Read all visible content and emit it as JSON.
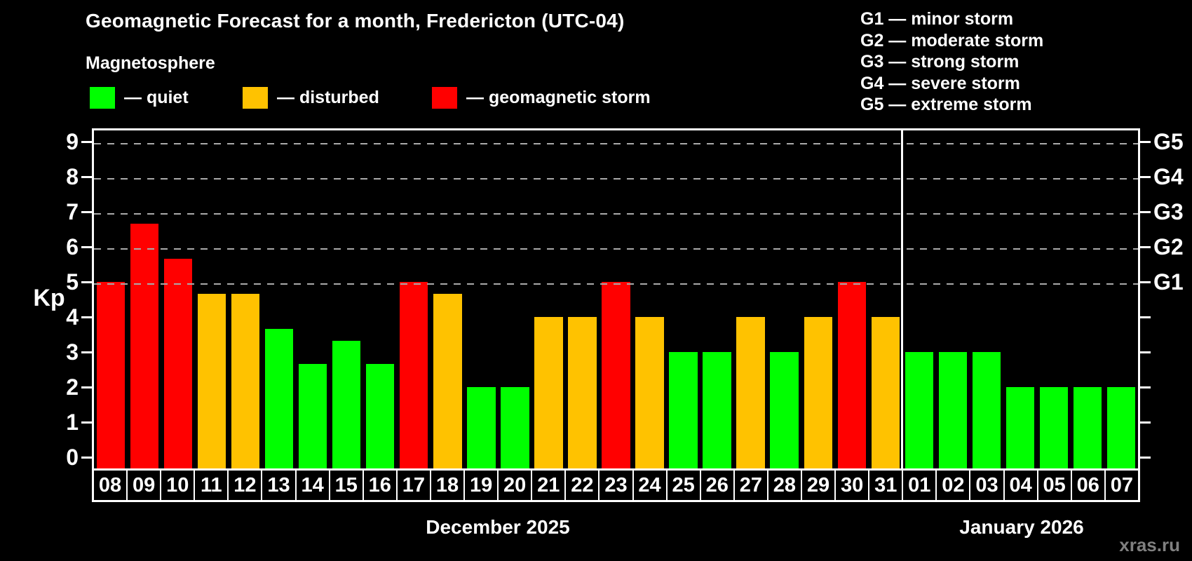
{
  "header": {
    "title": "Geomagnetic Forecast for a month, Fredericton (UTC-04)",
    "subtitle": "Magnetosphere",
    "legend": [
      {
        "key": "quiet",
        "label": "— quiet"
      },
      {
        "key": "disturbed",
        "label": "— disturbed"
      },
      {
        "key": "storm",
        "label": "— geomagnetic storm"
      }
    ],
    "g_scale_legend": [
      "G1 — minor storm",
      "G2 — moderate storm",
      "G3 — strong storm",
      "G4 — severe storm",
      "G5 — extreme storm"
    ]
  },
  "colors": {
    "quiet": "#00ff00",
    "disturbed": "#ffc200",
    "storm": "#ff0000",
    "grid": "#aaaaaa",
    "axis": "#ffffff",
    "background": "#000000",
    "watermark": "#808080"
  },
  "chart_data": {
    "type": "bar",
    "title": "Geomagnetic Forecast for a month, Fredericton (UTC-04)",
    "ylabel": "Kp",
    "ylim": [
      0,
      9
    ],
    "yticks": [
      0,
      1,
      2,
      3,
      4,
      5,
      6,
      7,
      8,
      9
    ],
    "gridlines_at_kp": [
      5,
      6,
      7,
      8,
      9
    ],
    "grid": "dashed horizontal at storm thresholds only",
    "right_axis": [
      {
        "kp": 5,
        "label": "G1"
      },
      {
        "kp": 6,
        "label": "G2"
      },
      {
        "kp": 7,
        "label": "G3"
      },
      {
        "kp": 8,
        "label": "G4"
      },
      {
        "kp": 9,
        "label": "G5"
      }
    ],
    "months": [
      {
        "label": "December 2025",
        "days": 24
      },
      {
        "label": "January 2026",
        "days": 7
      }
    ],
    "bars": [
      {
        "day": "08",
        "kp": 5.0,
        "status": "storm"
      },
      {
        "day": "09",
        "kp": 6.67,
        "status": "storm"
      },
      {
        "day": "10",
        "kp": 5.67,
        "status": "storm"
      },
      {
        "day": "11",
        "kp": 4.67,
        "status": "disturbed"
      },
      {
        "day": "12",
        "kp": 4.67,
        "status": "disturbed"
      },
      {
        "day": "13",
        "kp": 3.67,
        "status": "quiet"
      },
      {
        "day": "14",
        "kp": 2.67,
        "status": "quiet"
      },
      {
        "day": "15",
        "kp": 3.33,
        "status": "quiet"
      },
      {
        "day": "16",
        "kp": 2.67,
        "status": "quiet"
      },
      {
        "day": "17",
        "kp": 5.0,
        "status": "storm"
      },
      {
        "day": "18",
        "kp": 4.67,
        "status": "disturbed"
      },
      {
        "day": "19",
        "kp": 2.0,
        "status": "quiet"
      },
      {
        "day": "20",
        "kp": 2.0,
        "status": "quiet"
      },
      {
        "day": "21",
        "kp": 4.0,
        "status": "disturbed"
      },
      {
        "day": "22",
        "kp": 4.0,
        "status": "disturbed"
      },
      {
        "day": "23",
        "kp": 5.0,
        "status": "storm"
      },
      {
        "day": "24",
        "kp": 4.0,
        "status": "disturbed"
      },
      {
        "day": "25",
        "kp": 3.0,
        "status": "quiet"
      },
      {
        "day": "26",
        "kp": 3.0,
        "status": "quiet"
      },
      {
        "day": "27",
        "kp": 4.0,
        "status": "disturbed"
      },
      {
        "day": "28",
        "kp": 3.0,
        "status": "quiet"
      },
      {
        "day": "29",
        "kp": 4.0,
        "status": "disturbed"
      },
      {
        "day": "30",
        "kp": 5.0,
        "status": "storm"
      },
      {
        "day": "31",
        "kp": 4.0,
        "status": "disturbed"
      },
      {
        "day": "01",
        "kp": 3.0,
        "status": "quiet"
      },
      {
        "day": "02",
        "kp": 3.0,
        "status": "quiet"
      },
      {
        "day": "03",
        "kp": 3.0,
        "status": "quiet"
      },
      {
        "day": "04",
        "kp": 2.0,
        "status": "quiet"
      },
      {
        "day": "05",
        "kp": 2.0,
        "status": "quiet"
      },
      {
        "day": "06",
        "kp": 2.0,
        "status": "quiet"
      },
      {
        "day": "07",
        "kp": 2.0,
        "status": "quiet"
      }
    ]
  },
  "watermark": "xras.ru"
}
